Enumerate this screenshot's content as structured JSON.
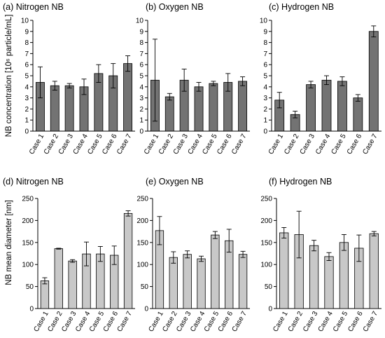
{
  "row_labels": [
    "NB concentration [10⁶ particle/mL]",
    "NB mean diameter [nm]"
  ],
  "colors": {
    "row1_bar": "#737373",
    "row2_bar": "#c8c8c8",
    "stroke": "#000000"
  },
  "chart_data": [
    {
      "type": "bar",
      "title": "(a) Nitrogen NB",
      "categories": [
        "Case 1",
        "Case 2",
        "Case 3",
        "Case 4",
        "Case 5",
        "Case 6",
        "Case 7"
      ],
      "values": [
        4.4,
        4.1,
        4.1,
        4.0,
        5.2,
        5.0,
        6.1
      ],
      "errors": [
        1.4,
        0.4,
        0.2,
        0.7,
        0.8,
        1.1,
        0.7
      ],
      "ylim": [
        0,
        10
      ],
      "yticks": [
        0,
        1,
        2,
        3,
        4,
        5,
        6,
        7,
        8,
        9,
        10
      ],
      "ylabel": "NB concentration [10⁶ particle/mL]"
    },
    {
      "type": "bar",
      "title": "(b) Oxygen NB",
      "categories": [
        "Case 1",
        "Case 2",
        "Case 3",
        "Case 4",
        "Case 5",
        "Case 6",
        "Case 7"
      ],
      "values": [
        4.6,
        3.1,
        4.6,
        4.0,
        4.3,
        4.4,
        4.5
      ],
      "errors": [
        3.7,
        0.3,
        1.0,
        0.4,
        0.2,
        0.8,
        0.4
      ],
      "ylim": [
        0,
        10
      ],
      "yticks": [
        0,
        1,
        2,
        3,
        4,
        5,
        6,
        7,
        8,
        9,
        10
      ],
      "ylabel": ""
    },
    {
      "type": "bar",
      "title": "(c) Hydrogen NB",
      "categories": [
        "Case 1",
        "Case 2",
        "Case 3",
        "Case 4",
        "Case 5",
        "Case 6",
        "Case 7"
      ],
      "values": [
        2.8,
        1.5,
        4.2,
        4.6,
        4.5,
        3.0,
        9.0
      ],
      "errors": [
        0.7,
        0.3,
        0.3,
        0.4,
        0.4,
        0.3,
        0.5
      ],
      "ylim": [
        0,
        10
      ],
      "yticks": [
        0,
        1,
        2,
        3,
        4,
        5,
        6,
        7,
        8,
        9,
        10
      ],
      "ylabel": ""
    },
    {
      "type": "bar",
      "title": "(d) Nitrogen NB",
      "categories": [
        "Case 1",
        "Case 2",
        "Case 3",
        "Case 4",
        "Case 5",
        "Case 6",
        "Case 7"
      ],
      "values": [
        63,
        136,
        108,
        124,
        124,
        121,
        216
      ],
      "errors": [
        7,
        1,
        3,
        27,
        17,
        21,
        6
      ],
      "ylim": [
        0,
        250
      ],
      "yticks": [
        0,
        50,
        100,
        150,
        200,
        250
      ],
      "ylabel": "NB mean diameter [nm]"
    },
    {
      "type": "bar",
      "title": "(e) Oxygen NB",
      "categories": [
        "Case 1",
        "Case 2",
        "Case 3",
        "Case 4",
        "Case 5",
        "Case 6",
        "Case 7"
      ],
      "values": [
        177,
        116,
        123,
        113,
        167,
        154,
        123
      ],
      "errors": [
        32,
        13,
        8,
        6,
        8,
        26,
        7
      ],
      "ylim": [
        0,
        250
      ],
      "yticks": [
        0,
        50,
        100,
        150,
        200,
        250
      ],
      "ylabel": ""
    },
    {
      "type": "bar",
      "title": "(f) Hydrogen NB",
      "categories": [
        "Case 1",
        "Case 2",
        "Case 3",
        "Case 4",
        "Case 5",
        "Case 6",
        "Case 7"
      ],
      "values": [
        172,
        168,
        143,
        118,
        150,
        137,
        170
      ],
      "errors": [
        12,
        53,
        12,
        9,
        18,
        30,
        5
      ],
      "ylim": [
        0,
        250
      ],
      "yticks": [
        0,
        50,
        100,
        150,
        200,
        250
      ],
      "ylabel": ""
    }
  ]
}
